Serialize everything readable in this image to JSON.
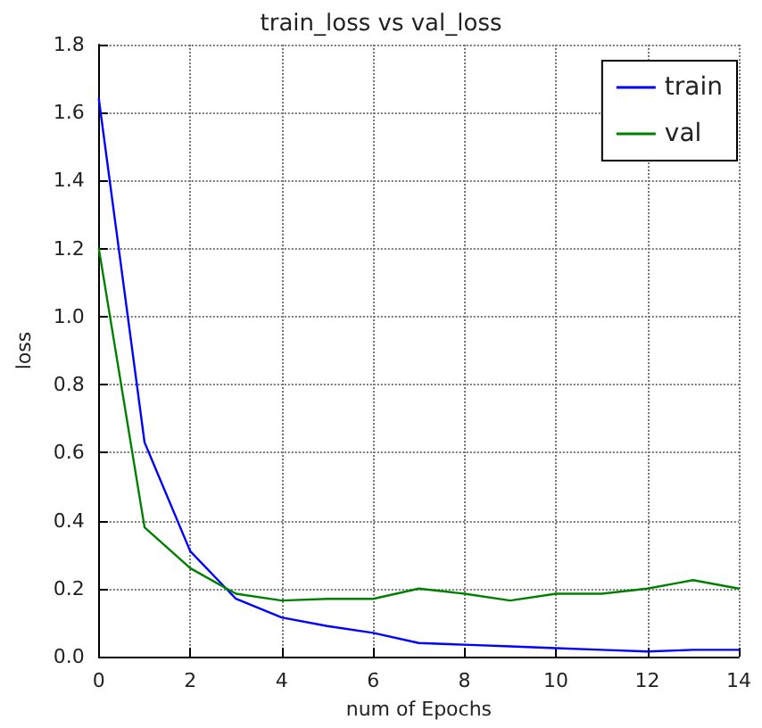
{
  "chart_data": {
    "type": "line",
    "title": "train_loss vs val_loss",
    "xlabel": "num of Epochs",
    "ylabel": "loss",
    "x": [
      0,
      1,
      2,
      3,
      4,
      5,
      6,
      7,
      8,
      9,
      10,
      11,
      12,
      13,
      14
    ],
    "series": [
      {
        "name": "train",
        "color": "#0000ff",
        "values": [
          1.64,
          0.63,
          0.31,
          0.17,
          0.115,
          0.09,
          0.07,
          0.04,
          0.035,
          0.03,
          0.025,
          0.02,
          0.015,
          0.02,
          0.02
        ]
      },
      {
        "name": "val",
        "color": "#008000",
        "values": [
          1.2,
          0.38,
          0.26,
          0.185,
          0.165,
          0.17,
          0.17,
          0.2,
          0.185,
          0.165,
          0.185,
          0.185,
          0.2,
          0.225,
          0.2
        ]
      }
    ],
    "xlim": [
      0,
      14
    ],
    "xticks": [
      0,
      2,
      4,
      6,
      8,
      10,
      12,
      14
    ],
    "ylim": [
      0,
      1.8
    ],
    "yticks": [
      {
        "value": 0,
        "label": "0.0"
      },
      0.2,
      0.4,
      0.6,
      0.8,
      {
        "value": 1,
        "label": "1.0"
      },
      1.2,
      1.4,
      1.6,
      1.8
    ],
    "grid": true,
    "legend": "top right",
    "marker": "none",
    "line_style": "solid"
  }
}
